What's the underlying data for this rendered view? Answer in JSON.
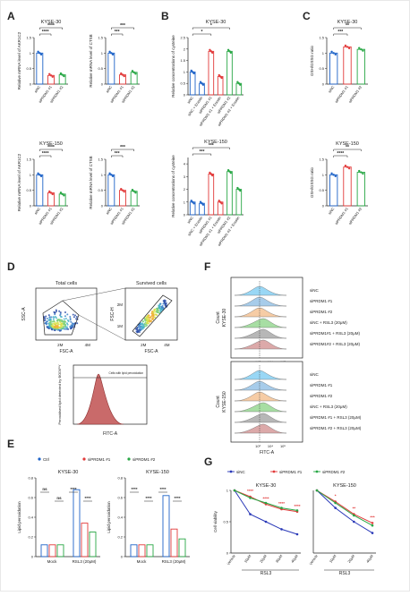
{
  "panels": {
    "A": {
      "letter": "A",
      "charts": [
        {
          "title": "KYSE-30",
          "ylabel": "Relative mRNA level of AKR1C2",
          "ymax": 1.5,
          "bars": [
            {
              "cat": "siNC",
              "v": 1.0,
              "c": "#1e63c8"
            },
            {
              "cat": "siPRDM1 #1",
              "v": 0.28,
              "c": "#e23a3a"
            },
            {
              "cat": "siPRDM1 #2",
              "v": 0.3,
              "c": "#28a745"
            }
          ],
          "sig": [
            {
              "a": 0,
              "b": 1,
              "t": "****",
              "lvl": 0
            },
            {
              "a": 0,
              "b": 2,
              "t": "****",
              "lvl": 1
            }
          ]
        },
        {
          "title": "",
          "ylabel": "Relative mRNA level of CTSB",
          "ymax": 1.5,
          "bars": [
            {
              "cat": "siNC",
              "v": 1.0,
              "c": "#1e63c8"
            },
            {
              "cat": "siPRDM1 #1",
              "v": 0.3,
              "c": "#e23a3a"
            },
            {
              "cat": "siPRDM1 #2",
              "v": 0.38,
              "c": "#28a745"
            }
          ],
          "sig": [
            {
              "a": 0,
              "b": 1,
              "t": "***",
              "lvl": 0
            },
            {
              "a": 0,
              "b": 2,
              "t": "***",
              "lvl": 1
            }
          ]
        },
        {
          "title": "KYSE-150",
          "ylabel": "Relative mRNA level of AKR1C2",
          "ymax": 1.5,
          "bars": [
            {
              "cat": "siNC",
              "v": 1.0,
              "c": "#1e63c8"
            },
            {
              "cat": "siPRDM1 #1",
              "v": 0.42,
              "c": "#e23a3a"
            },
            {
              "cat": "siPRDM1 #2",
              "v": 0.38,
              "c": "#28a745"
            }
          ],
          "sig": [
            {
              "a": 0,
              "b": 1,
              "t": "****",
              "lvl": 0
            },
            {
              "a": 0,
              "b": 2,
              "t": "****",
              "lvl": 1
            }
          ]
        },
        {
          "title": "",
          "ylabel": "Relative mRNA level of CTSB",
          "ymax": 1.5,
          "bars": [
            {
              "cat": "siNC",
              "v": 1.0,
              "c": "#1e63c8"
            },
            {
              "cat": "siPRDM1 #1",
              "v": 0.5,
              "c": "#e23a3a"
            },
            {
              "cat": "siPRDM1 #2",
              "v": 0.47,
              "c": "#28a745"
            }
          ],
          "sig": [
            {
              "a": 0,
              "b": 1,
              "t": "***",
              "lvl": 0
            },
            {
              "a": 0,
              "b": 2,
              "t": "***",
              "lvl": 1
            }
          ]
        }
      ]
    },
    "B": {
      "letter": "B",
      "charts": [
        {
          "title": "KYSE-30",
          "ylabel": "Relative concentrations of cysteine",
          "ymax": 2.5,
          "bars": [
            {
              "cat": "siNC",
              "v": 1.0,
              "c": "#1e63c8"
            },
            {
              "cat": "siNC + Erastin",
              "v": 0.5,
              "c": "#1e63c8"
            },
            {
              "cat": "siPRDM1 #1",
              "v": 1.9,
              "c": "#e23a3a"
            },
            {
              "cat": "siPRDM1 #1 + Erastin",
              "v": 0.8,
              "c": "#e23a3a"
            },
            {
              "cat": "siPRDM1 #2",
              "v": 1.9,
              "c": "#28a745"
            },
            {
              "cat": "siPRDM1 #2 + Erastin",
              "v": 0.5,
              "c": "#28a745"
            }
          ],
          "sig": [
            {
              "a": 0,
              "b": 2,
              "t": "*",
              "lvl": 0
            },
            {
              "a": 0,
              "b": 4,
              "t": "*",
              "lvl": 1
            }
          ]
        },
        {
          "title": "KYSE-150",
          "ylabel": "Relative concentrations of cysteine",
          "ymax": 4.5,
          "bars": [
            {
              "cat": "siNC",
              "v": 1.0,
              "c": "#1e63c8"
            },
            {
              "cat": "siNC + Erastin",
              "v": 0.9,
              "c": "#1e63c8"
            },
            {
              "cat": "siPRDM1 #1",
              "v": 3.2,
              "c": "#e23a3a"
            },
            {
              "cat": "siPRDM1 #1 + Erastin",
              "v": 1.0,
              "c": "#e23a3a"
            },
            {
              "cat": "siPRDM1 #2",
              "v": 3.4,
              "c": "#28a745"
            },
            {
              "cat": "siPRDM1 #2 + Erastin",
              "v": 2.0,
              "c": "#28a745"
            }
          ],
          "sig": [
            {
              "a": 0,
              "b": 2,
              "t": "***",
              "lvl": 0
            },
            {
              "a": 0,
              "b": 4,
              "t": "***",
              "lvl": 1
            }
          ]
        }
      ]
    },
    "C": {
      "letter": "C",
      "charts": [
        {
          "title": "KYSE-30",
          "ylabel": "GSH/GSSG ratio",
          "ymax": 1.5,
          "bars": [
            {
              "cat": "siNC",
              "v": 1.0,
              "c": "#1e63c8"
            },
            {
              "cat": "siPRDM1 #1",
              "v": 1.2,
              "c": "#e23a3a"
            },
            {
              "cat": "siPRDM1 #2",
              "v": 1.12,
              "c": "#28a745"
            }
          ],
          "sig": [
            {
              "a": 0,
              "b": 1,
              "t": "***",
              "lvl": 0
            },
            {
              "a": 0,
              "b": 2,
              "t": "**",
              "lvl": 1
            }
          ]
        },
        {
          "title": "KYSE-150",
          "ylabel": "GSH/GSSG ratio",
          "ymax": 1.5,
          "bars": [
            {
              "cat": "siNC",
              "v": 1.0,
              "c": "#1e63c8"
            },
            {
              "cat": "siPRDM1 #1",
              "v": 1.25,
              "c": "#e23a3a"
            },
            {
              "cat": "siPRDM1 #2",
              "v": 1.08,
              "c": "#28a745"
            }
          ],
          "sig": [
            {
              "a": 0,
              "b": 1,
              "t": "****",
              "lvl": 0
            },
            {
              "a": 0,
              "b": 2,
              "t": "**",
              "lvl": 1
            }
          ]
        }
      ]
    },
    "D": {
      "letter": "D",
      "left_title": "Total cells",
      "right_title": "Survived cells",
      "left_y": "SSC-A",
      "left_x": "FSC-A",
      "right_y": "FSC-H",
      "right_x": "FSC-A",
      "left_xticks": [
        "2M",
        "4M"
      ],
      "right_xticks": [
        "2M",
        "4M"
      ],
      "right_yticks": [
        "1M",
        "2M"
      ],
      "hist_ylabel": "Peroxidised lipid detected by BODIPY",
      "hist_xlabel": "FITC-A",
      "hist_gate": "Cells with lipid peroxidation"
    },
    "E": {
      "letter": "E",
      "legend": [
        {
          "name": "Ctrl",
          "c": "#1e63c8"
        },
        {
          "name": "siPRDM1 #1",
          "c": "#e23a3a"
        },
        {
          "name": "siPRDM1 #2",
          "c": "#28a745"
        }
      ],
      "charts": [
        {
          "title": "KYSE-30",
          "ylabel": "Lipid peroxidation",
          "ymax": 0.8,
          "groups": [
            {
              "name": "Mock",
              "vals": [
                0.12,
                0.12,
                0.12
              ]
            },
            {
              "name": "RSL3 (20μM)",
              "vals": [
                0.68,
                0.34,
                0.25
              ]
            }
          ],
          "sig_top": [
            "ns",
            "ns",
            "****",
            "****"
          ]
        },
        {
          "title": "KYSE-150",
          "ylabel": "Lipid peroxidation",
          "ymax": 0.8,
          "groups": [
            {
              "name": "Mock",
              "vals": [
                0.12,
                0.12,
                0.12
              ]
            },
            {
              "name": "RSL3 (20μM)",
              "vals": [
                0.62,
                0.28,
                0.18
              ]
            }
          ],
          "sig_top": [
            "****",
            "****",
            "****",
            "****"
          ]
        }
      ]
    },
    "F": {
      "letter": "F",
      "block_labels": [
        "KYSE-30",
        "KYSE-150"
      ],
      "ylabel": "Count",
      "xlabel": "FITC-A",
      "legend": [
        "siNC",
        "siPRDM1 #1",
        "siPRDM1 #2",
        "siNC + RSL3 (20μM)",
        "siPRDM1#1 + RSL3 (20μM)",
        "siPRDM1#2 + RSL3 (20μM)"
      ],
      "legend2": [
        "siNC",
        "siPRDM1 #1",
        "siPRDM1 #2",
        "siNC + RSL3 (20μM)",
        "siPRDM1 #1 + RSL3 (20μM)",
        "siPRDM1 #2 + RSL3 (20μM)"
      ],
      "ticks": [
        "10³",
        "10⁴",
        "10⁵"
      ],
      "colors": [
        "#8fd3f5",
        "#9ec7e8",
        "#f6c79c",
        "#9edb9a",
        "#b0b0b0",
        "#d9a0a0"
      ]
    },
    "G": {
      "letter": "G",
      "legend": [
        {
          "name": "siNC",
          "c": "#2a39b8"
        },
        {
          "name": "siPRDM1 #1",
          "c": "#e23a3a"
        },
        {
          "name": "siPRDM1 #2",
          "c": "#28a745"
        }
      ],
      "ylabel": "Cell viability",
      "xgroup": "RSL3",
      "charts": [
        {
          "title": "KYSE-30",
          "categories": [
            "Vehicle",
            "10μM",
            "20μM",
            "30μM",
            "40μM"
          ],
          "series": [
            {
              "name": "siNC",
              "c": "#2a39b8",
              "values": [
                1.0,
                0.62,
                0.5,
                0.38,
                0.3
              ]
            },
            {
              "name": "siPRDM1 #1",
              "c": "#e23a3a",
              "values": [
                1.0,
                0.9,
                0.78,
                0.7,
                0.66
              ]
            },
            {
              "name": "siPRDM1 #2",
              "c": "#28a745",
              "values": [
                1.0,
                0.88,
                0.8,
                0.72,
                0.68
              ]
            }
          ],
          "stars": [
            "****",
            "****",
            "****",
            "****"
          ]
        },
        {
          "title": "KYSE-150",
          "categories": [
            "Vehicle",
            "10μM",
            "20μM",
            "40μM"
          ],
          "series": [
            {
              "name": "siNC",
              "c": "#2a39b8",
              "values": [
                1.0,
                0.72,
                0.5,
                0.32
              ]
            },
            {
              "name": "siPRDM1 #1",
              "c": "#e23a3a",
              "values": [
                1.0,
                0.82,
                0.62,
                0.48
              ]
            },
            {
              "name": "siPRDM1 #2",
              "c": "#28a745",
              "values": [
                1.0,
                0.8,
                0.6,
                0.44
              ]
            }
          ],
          "stars": [
            "*",
            "**",
            "***"
          ]
        }
      ]
    }
  }
}
